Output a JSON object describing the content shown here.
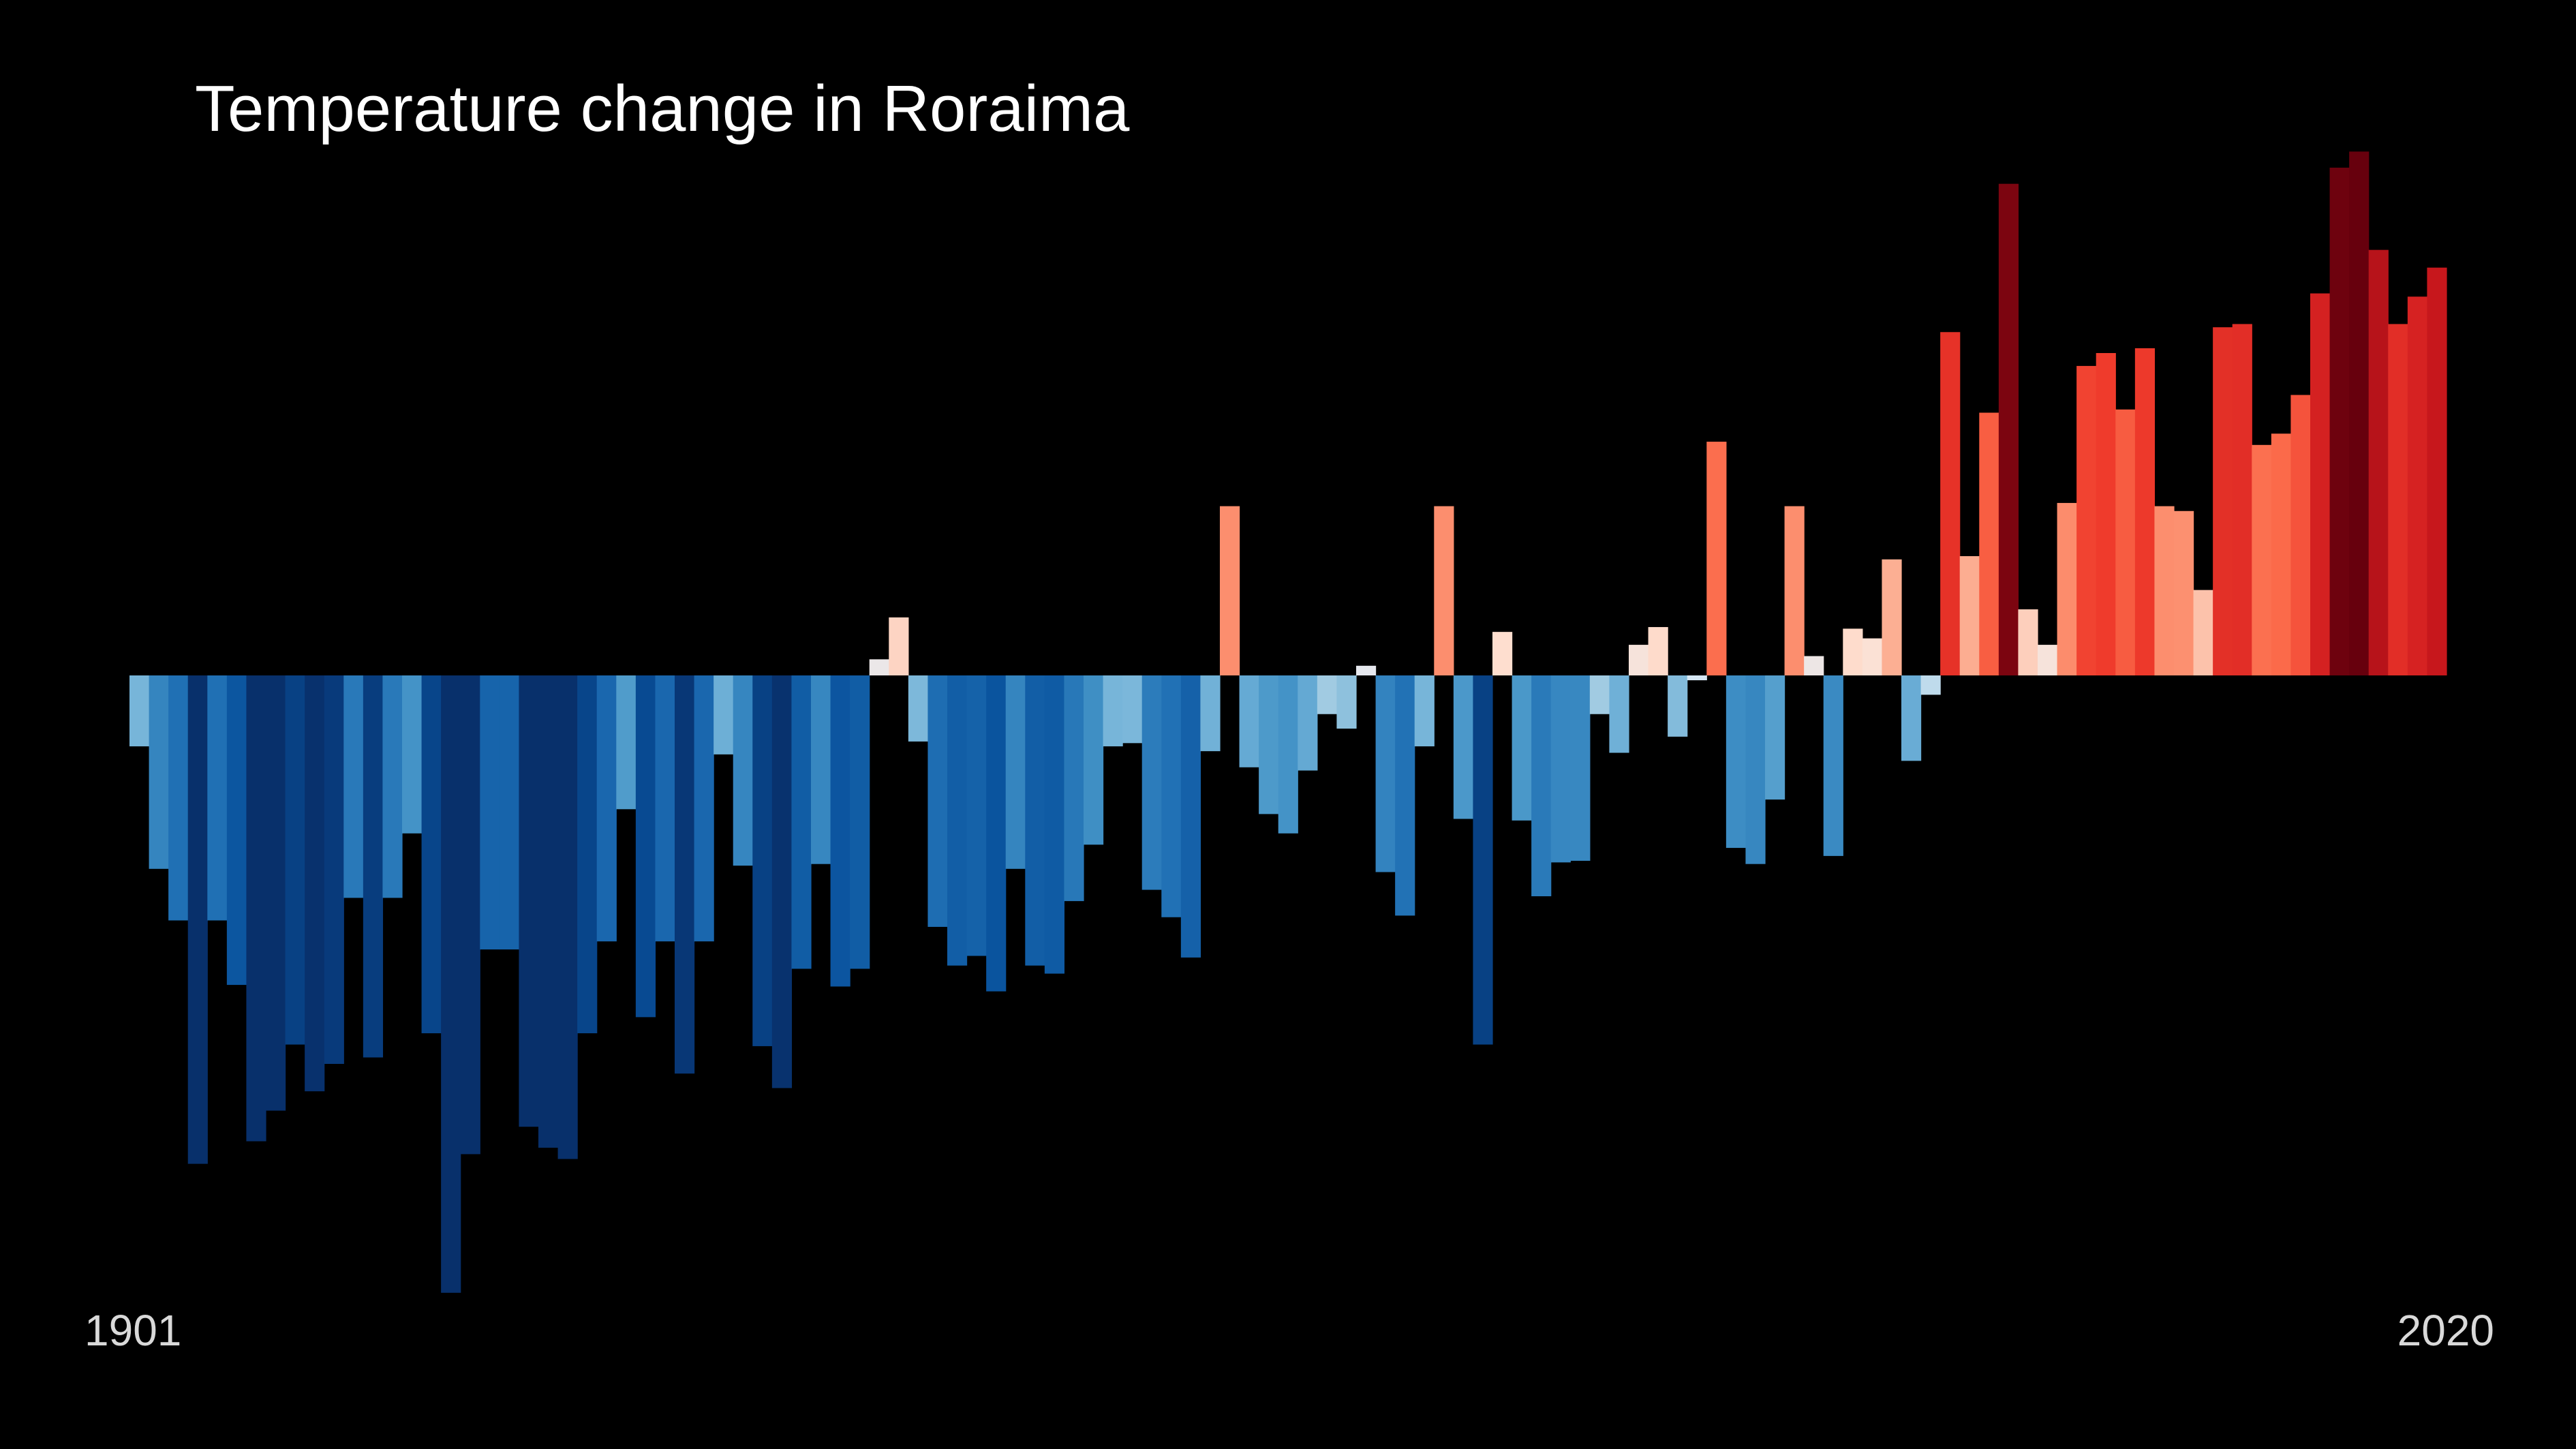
{
  "chart_data": {
    "type": "bar",
    "title": "Temperature change in Roraima",
    "x_start_label": "1901",
    "x_end_label": "2020",
    "x_start": 1901,
    "x_end": 2020,
    "y_unit": "anomaly",
    "ylim": [
      -3.8,
      3.3
    ],
    "values": [
      -0.44,
      -1.2,
      -1.52,
      -3.03,
      -1.52,
      -1.92,
      -2.89,
      -2.7,
      -2.29,
      -2.58,
      -2.41,
      -1.38,
      -2.37,
      -1.38,
      -0.98,
      -2.22,
      -3.83,
      -2.97,
      -1.7,
      -1.7,
      -2.8,
      -2.93,
      -3.0,
      -2.22,
      -1.65,
      -0.83,
      -2.12,
      -1.65,
      -2.47,
      -1.65,
      -0.49,
      -1.18,
      -2.3,
      -2.56,
      -1.82,
      -1.17,
      -1.93,
      -1.82,
      0.1,
      0.36,
      -0.41,
      -1.56,
      -1.8,
      -1.74,
      -1.96,
      -1.2,
      -1.8,
      -1.85,
      -1.4,
      -1.05,
      -0.44,
      -0.42,
      -1.33,
      -1.5,
      -1.75,
      -0.47,
      1.05,
      -0.57,
      -0.86,
      -0.98,
      -0.59,
      -0.24,
      -0.33,
      0.06,
      -1.22,
      -1.49,
      -0.44,
      1.05,
      -0.89,
      -2.29,
      0.27,
      -0.9,
      -1.37,
      -1.16,
      -1.15,
      -0.24,
      -0.48,
      0.19,
      0.3,
      -0.38,
      -0.03,
      1.45,
      -1.07,
      -1.17,
      -0.77,
      1.05,
      0.12,
      -1.12,
      0.29,
      0.23,
      0.72,
      -0.53,
      -0.12,
      2.13,
      0.74,
      1.63,
      3.05,
      0.41,
      0.19,
      1.07,
      1.92,
      2.0,
      1.65,
      2.03,
      1.05,
      1.02,
      0.53,
      2.16,
      2.18,
      1.43,
      1.5,
      1.74,
      2.37,
      3.15,
      3.25,
      2.64,
      2.18,
      2.35,
      2.53
    ],
    "colors": {
      "background": "#000000",
      "title": "#ffffff",
      "year_labels": "#d9d9d9"
    },
    "grid": false,
    "legend": "none"
  }
}
